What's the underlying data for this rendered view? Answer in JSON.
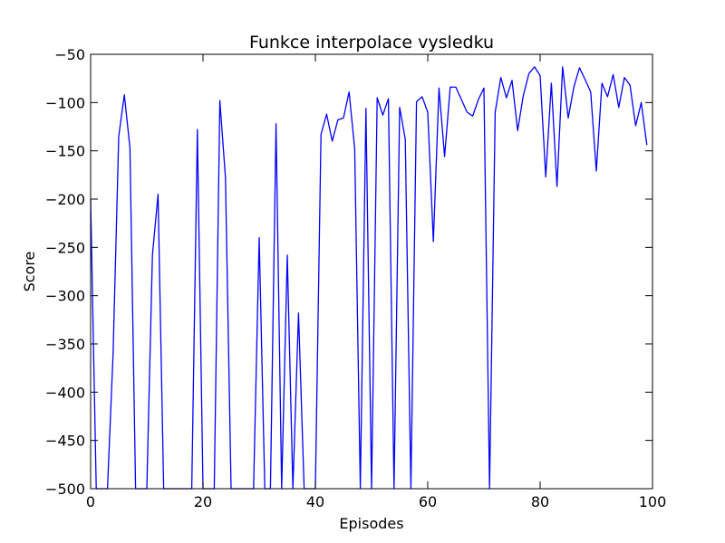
{
  "chart_data": {
    "type": "line",
    "title": "Funkce interpolace vysledku",
    "xlabel": "Episodes",
    "ylabel": "Score",
    "xlim": [
      0,
      100
    ],
    "ylim": [
      -500,
      -50
    ],
    "xticks": [
      0,
      20,
      40,
      60,
      80,
      100
    ],
    "yticks": [
      -500,
      -450,
      -400,
      -350,
      -300,
      -250,
      -200,
      -150,
      -100,
      -50
    ],
    "grid": false,
    "series": [
      {
        "color": "#0000ff",
        "x": [
          0,
          1,
          2,
          3,
          4,
          5,
          6,
          7,
          8,
          9,
          10,
          11,
          12,
          13,
          14,
          15,
          16,
          17,
          18,
          19,
          20,
          21,
          22,
          23,
          24,
          25,
          26,
          27,
          28,
          29,
          30,
          31,
          32,
          33,
          34,
          35,
          36,
          37,
          38,
          39,
          40,
          41,
          42,
          43,
          44,
          45,
          46,
          47,
          48,
          49,
          50,
          51,
          52,
          53,
          54,
          55,
          56,
          57,
          58,
          59,
          60,
          61,
          62,
          63,
          64,
          65,
          66,
          67,
          68,
          69,
          70,
          71,
          72,
          73,
          74,
          75,
          76,
          77,
          78,
          79,
          80,
          81,
          82,
          83,
          84,
          85,
          86,
          87,
          88,
          89,
          90,
          91,
          92,
          93,
          94,
          95,
          96,
          97,
          98,
          99
        ],
        "y": [
          -200,
          -500,
          -500,
          -500,
          -360,
          -135,
          -92,
          -147,
          -500,
          -500,
          -500,
          -258,
          -195,
          -500,
          -500,
          -500,
          -500,
          -500,
          -500,
          -128,
          -500,
          -500,
          -500,
          -98,
          -178,
          -500,
          -500,
          -500,
          -500,
          -500,
          -240,
          -500,
          -500,
          -122,
          -500,
          -258,
          -500,
          -318,
          -500,
          -500,
          -500,
          -133,
          -112,
          -140,
          -118,
          -116,
          -89,
          -148,
          -500,
          -106,
          -500,
          -95,
          -113,
          -96,
          -500,
          -105,
          -138,
          -500,
          -99,
          -94,
          -110,
          -244,
          -85,
          -156,
          -84,
          -84,
          -97,
          -110,
          -114,
          -97,
          -85,
          -500,
          -110,
          -74,
          -95,
          -77,
          -129,
          -93,
          -70,
          -63,
          -72,
          -177,
          -80,
          -187,
          -63,
          -116,
          -84,
          -64,
          -76,
          -89,
          -171,
          -80,
          -94,
          -71,
          -105,
          -74,
          -82,
          -124,
          -100,
          -144
        ]
      }
    ]
  }
}
